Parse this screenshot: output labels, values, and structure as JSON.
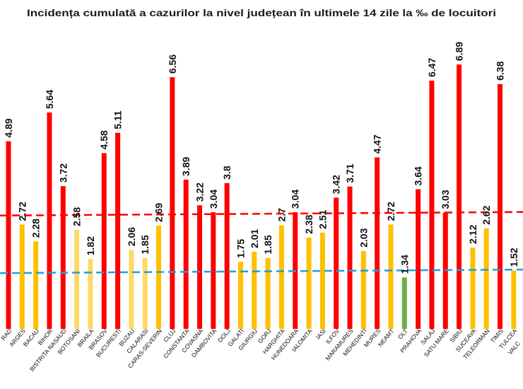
{
  "chart_data": {
    "type": "bar",
    "title": "Incidența cumulată a cazurilor la nivel județean în ultimele 14 zile la ‰ de locuitori",
    "categories": [
      "RAD",
      "ARGES",
      "BACAU",
      "BIHOR",
      "BISTRITA NASAUD",
      "BOTOSANI",
      "BRAILA",
      "BRASOV",
      "BUCURESTI",
      "BUZAU",
      "CALARASI",
      "CARAS-SEVERIN",
      "CLUJ",
      "CONSTANTA",
      "COVASNA",
      "DAMBOVITA",
      "DOLJ",
      "GALATI",
      "GIURGIU",
      "GORJ",
      "HARGHITA",
      "HUNEDOARA",
      "IALOMITA",
      "IASI",
      "ILFOV",
      "MARAMURES",
      "MEHEDINTI",
      "MURES",
      "NEAMT",
      "OLT",
      "PRAHOVA",
      "SALAJ",
      "SATU MARE",
      "SIBIU",
      "SUCEAVA",
      "TELEORMAN",
      "TIMIS",
      "TULCEA",
      "VALC"
    ],
    "values": [
      4.89,
      2.72,
      2.28,
      5.64,
      3.72,
      2.58,
      1.82,
      4.58,
      5.11,
      2.06,
      1.85,
      2.69,
      6.56,
      3.89,
      3.22,
      3.04,
      3.8,
      1.75,
      2.01,
      1.85,
      2.7,
      3.04,
      2.38,
      2.51,
      3.42,
      3.71,
      2.03,
      4.47,
      2.72,
      1.34,
      3.64,
      6.47,
      3.03,
      6.89,
      2.12,
      2.62,
      6.38,
      1.52,
      null
    ],
    "bar_colors": [
      "#ff0000",
      "#ffc000",
      "#ffc000",
      "#ff0000",
      "#ff0000",
      "#ffd966",
      "#ffd966",
      "#ff0000",
      "#ff0000",
      "#ffd966",
      "#ffd966",
      "#ffc000",
      "#ff0000",
      "#ff0000",
      "#ff0000",
      "#ff0000",
      "#ff0000",
      "#ffc000",
      "#ffc000",
      "#ffc000",
      "#ffc000",
      "#ff0000",
      "#ffc000",
      "#ffc000",
      "#ff0000",
      "#ff0000",
      "#ffc000",
      "#ff0000",
      "#ffc000",
      "#70ad47",
      "#ff0000",
      "#ff0000",
      "#ff0000",
      "#ff0000",
      "#ffc000",
      "#ffc000",
      "#ff0000",
      "#ffc000",
      null
    ],
    "ylim": [
      0,
      8
    ],
    "grid": false,
    "data_labels": true,
    "reference_lines": [
      {
        "value": 3,
        "color": "#ff0000",
        "dashed": true
      },
      {
        "value": 1.5,
        "color": "#1ea0dc",
        "dashed": true
      }
    ]
  }
}
